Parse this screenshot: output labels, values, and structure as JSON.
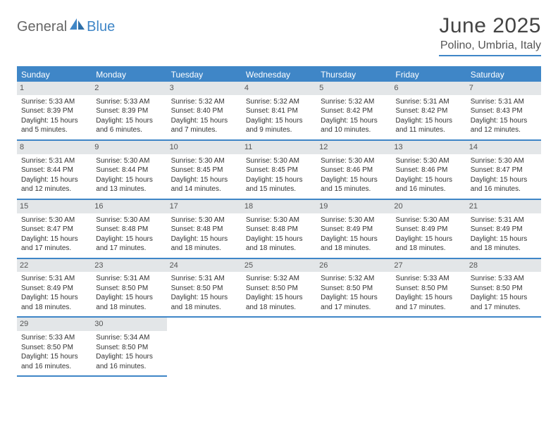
{
  "logo": {
    "general": "General",
    "blue": "Blue"
  },
  "title": "June 2025",
  "location": "Polino, Umbria, Italy",
  "colors": {
    "accent": "#3f86c7",
    "dayBg": "#e3e6e8",
    "text": "#333333"
  },
  "weekdays": [
    "Sunday",
    "Monday",
    "Tuesday",
    "Wednesday",
    "Thursday",
    "Friday",
    "Saturday"
  ],
  "days": [
    {
      "n": "1",
      "sunrise": "Sunrise: 5:33 AM",
      "sunset": "Sunset: 8:39 PM",
      "daylight": "Daylight: 15 hours and 5 minutes."
    },
    {
      "n": "2",
      "sunrise": "Sunrise: 5:33 AM",
      "sunset": "Sunset: 8:39 PM",
      "daylight": "Daylight: 15 hours and 6 minutes."
    },
    {
      "n": "3",
      "sunrise": "Sunrise: 5:32 AM",
      "sunset": "Sunset: 8:40 PM",
      "daylight": "Daylight: 15 hours and 7 minutes."
    },
    {
      "n": "4",
      "sunrise": "Sunrise: 5:32 AM",
      "sunset": "Sunset: 8:41 PM",
      "daylight": "Daylight: 15 hours and 9 minutes."
    },
    {
      "n": "5",
      "sunrise": "Sunrise: 5:32 AM",
      "sunset": "Sunset: 8:42 PM",
      "daylight": "Daylight: 15 hours and 10 minutes."
    },
    {
      "n": "6",
      "sunrise": "Sunrise: 5:31 AM",
      "sunset": "Sunset: 8:42 PM",
      "daylight": "Daylight: 15 hours and 11 minutes."
    },
    {
      "n": "7",
      "sunrise": "Sunrise: 5:31 AM",
      "sunset": "Sunset: 8:43 PM",
      "daylight": "Daylight: 15 hours and 12 minutes."
    },
    {
      "n": "8",
      "sunrise": "Sunrise: 5:31 AM",
      "sunset": "Sunset: 8:44 PM",
      "daylight": "Daylight: 15 hours and 12 minutes."
    },
    {
      "n": "9",
      "sunrise": "Sunrise: 5:30 AM",
      "sunset": "Sunset: 8:44 PM",
      "daylight": "Daylight: 15 hours and 13 minutes."
    },
    {
      "n": "10",
      "sunrise": "Sunrise: 5:30 AM",
      "sunset": "Sunset: 8:45 PM",
      "daylight": "Daylight: 15 hours and 14 minutes."
    },
    {
      "n": "11",
      "sunrise": "Sunrise: 5:30 AM",
      "sunset": "Sunset: 8:45 PM",
      "daylight": "Daylight: 15 hours and 15 minutes."
    },
    {
      "n": "12",
      "sunrise": "Sunrise: 5:30 AM",
      "sunset": "Sunset: 8:46 PM",
      "daylight": "Daylight: 15 hours and 15 minutes."
    },
    {
      "n": "13",
      "sunrise": "Sunrise: 5:30 AM",
      "sunset": "Sunset: 8:46 PM",
      "daylight": "Daylight: 15 hours and 16 minutes."
    },
    {
      "n": "14",
      "sunrise": "Sunrise: 5:30 AM",
      "sunset": "Sunset: 8:47 PM",
      "daylight": "Daylight: 15 hours and 16 minutes."
    },
    {
      "n": "15",
      "sunrise": "Sunrise: 5:30 AM",
      "sunset": "Sunset: 8:47 PM",
      "daylight": "Daylight: 15 hours and 17 minutes."
    },
    {
      "n": "16",
      "sunrise": "Sunrise: 5:30 AM",
      "sunset": "Sunset: 8:48 PM",
      "daylight": "Daylight: 15 hours and 17 minutes."
    },
    {
      "n": "17",
      "sunrise": "Sunrise: 5:30 AM",
      "sunset": "Sunset: 8:48 PM",
      "daylight": "Daylight: 15 hours and 18 minutes."
    },
    {
      "n": "18",
      "sunrise": "Sunrise: 5:30 AM",
      "sunset": "Sunset: 8:48 PM",
      "daylight": "Daylight: 15 hours and 18 minutes."
    },
    {
      "n": "19",
      "sunrise": "Sunrise: 5:30 AM",
      "sunset": "Sunset: 8:49 PM",
      "daylight": "Daylight: 15 hours and 18 minutes."
    },
    {
      "n": "20",
      "sunrise": "Sunrise: 5:30 AM",
      "sunset": "Sunset: 8:49 PM",
      "daylight": "Daylight: 15 hours and 18 minutes."
    },
    {
      "n": "21",
      "sunrise": "Sunrise: 5:31 AM",
      "sunset": "Sunset: 8:49 PM",
      "daylight": "Daylight: 15 hours and 18 minutes."
    },
    {
      "n": "22",
      "sunrise": "Sunrise: 5:31 AM",
      "sunset": "Sunset: 8:49 PM",
      "daylight": "Daylight: 15 hours and 18 minutes."
    },
    {
      "n": "23",
      "sunrise": "Sunrise: 5:31 AM",
      "sunset": "Sunset: 8:50 PM",
      "daylight": "Daylight: 15 hours and 18 minutes."
    },
    {
      "n": "24",
      "sunrise": "Sunrise: 5:31 AM",
      "sunset": "Sunset: 8:50 PM",
      "daylight": "Daylight: 15 hours and 18 minutes."
    },
    {
      "n": "25",
      "sunrise": "Sunrise: 5:32 AM",
      "sunset": "Sunset: 8:50 PM",
      "daylight": "Daylight: 15 hours and 18 minutes."
    },
    {
      "n": "26",
      "sunrise": "Sunrise: 5:32 AM",
      "sunset": "Sunset: 8:50 PM",
      "daylight": "Daylight: 15 hours and 17 minutes."
    },
    {
      "n": "27",
      "sunrise": "Sunrise: 5:33 AM",
      "sunset": "Sunset: 8:50 PM",
      "daylight": "Daylight: 15 hours and 17 minutes."
    },
    {
      "n": "28",
      "sunrise": "Sunrise: 5:33 AM",
      "sunset": "Sunset: 8:50 PM",
      "daylight": "Daylight: 15 hours and 17 minutes."
    },
    {
      "n": "29",
      "sunrise": "Sunrise: 5:33 AM",
      "sunset": "Sunset: 8:50 PM",
      "daylight": "Daylight: 15 hours and 16 minutes."
    },
    {
      "n": "30",
      "sunrise": "Sunrise: 5:34 AM",
      "sunset": "Sunset: 8:50 PM",
      "daylight": "Daylight: 15 hours and 16 minutes."
    }
  ]
}
